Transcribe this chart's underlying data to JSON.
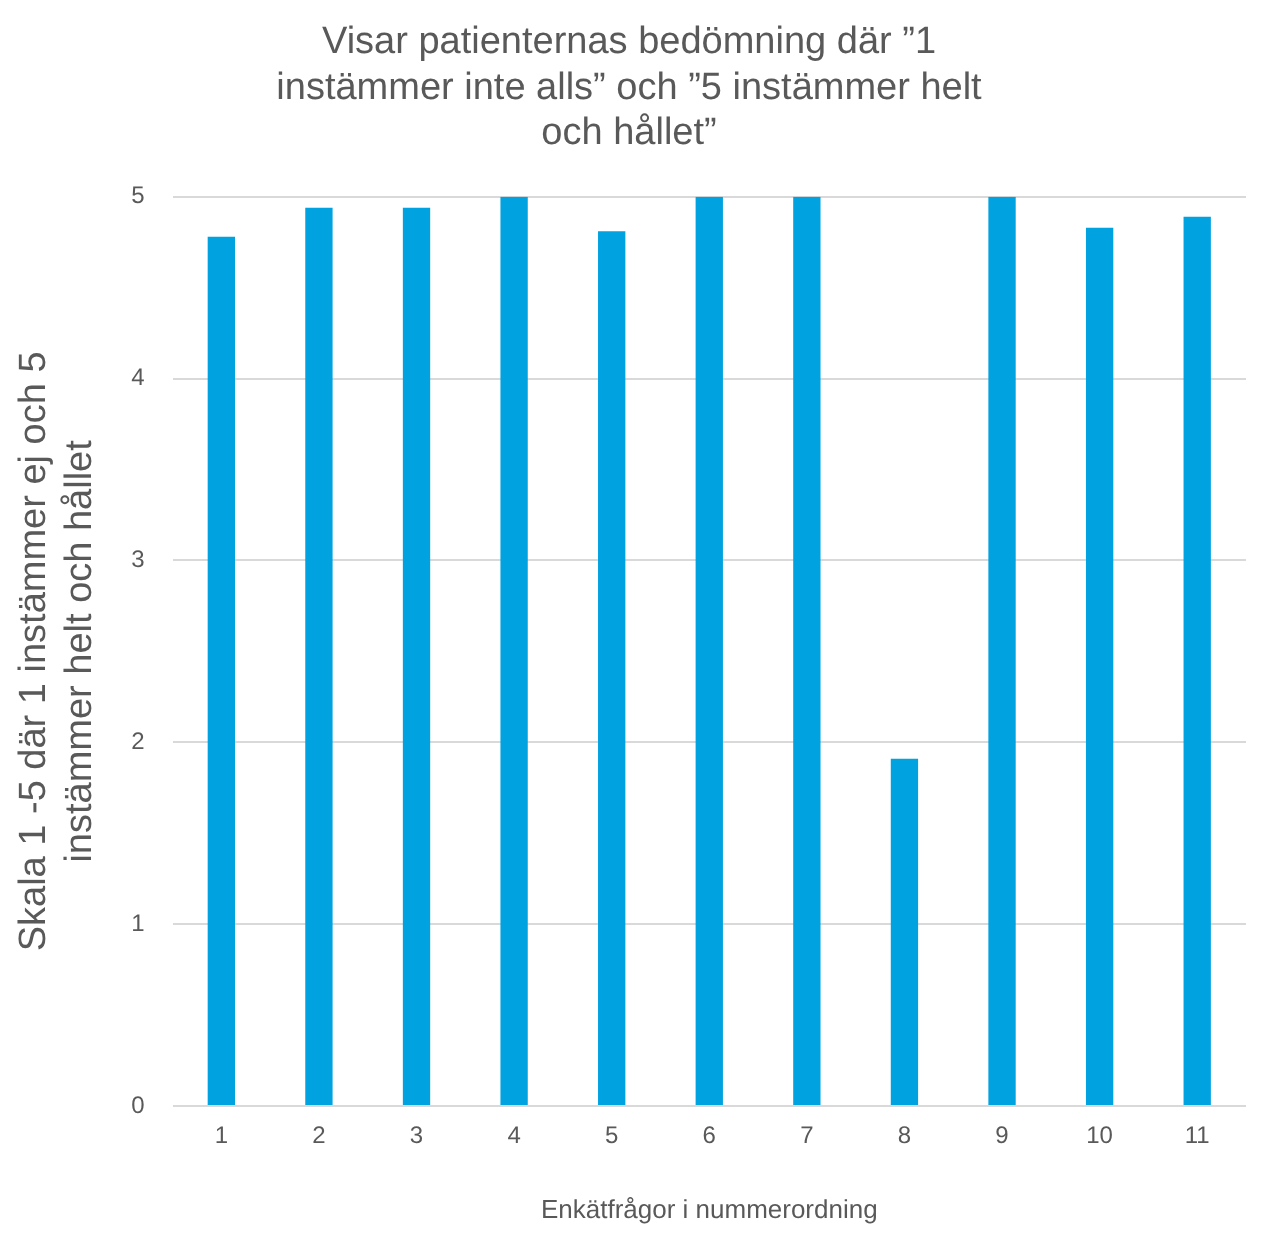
{
  "chart_data": {
    "type": "bar",
    "title": "Visar patienternas bedömning där ”1 instämmer inte alls” och ”5 instämmer helt och hållet”",
    "xlabel": "Enkätfrågor i nummerordning",
    "ylabel": "Skala 1 -5 där 1 instämmer ej och 5 instämmer helt och hållet",
    "categories": [
      "1",
      "2",
      "3",
      "4",
      "5",
      "6",
      "7",
      "8",
      "9",
      "10",
      "11"
    ],
    "values": [
      4.78,
      4.94,
      4.94,
      5,
      4.81,
      5,
      5,
      1.91,
      5,
      4.83,
      4.89
    ],
    "color": "#00a2e0",
    "ylim": [
      0,
      5
    ],
    "yticks": [
      0,
      1,
      2,
      3,
      4,
      5
    ],
    "grid": "y"
  }
}
